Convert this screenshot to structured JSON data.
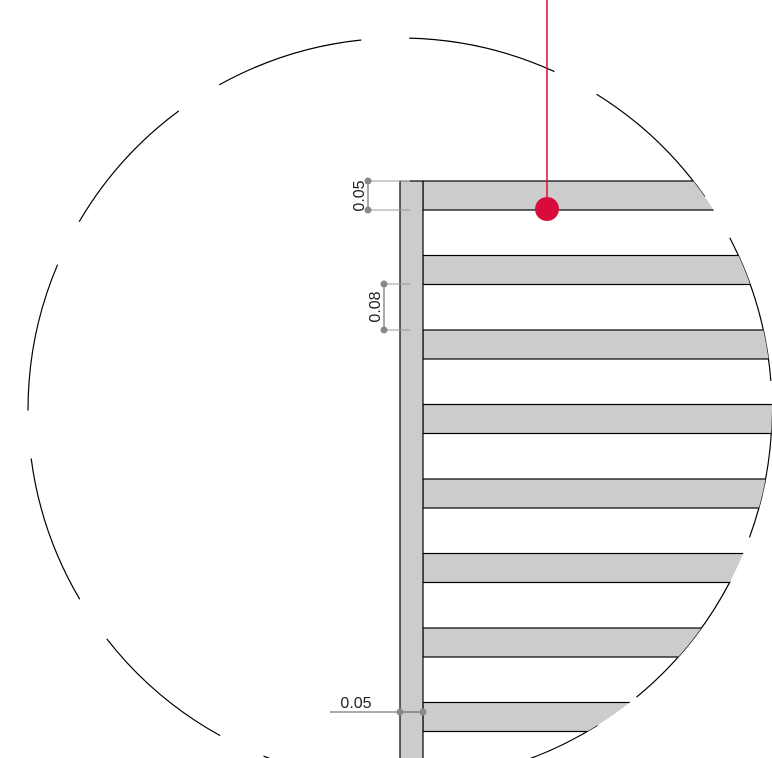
{
  "colors": {
    "background": "#ffffff",
    "fill": "#cccccc",
    "stroke": "#000000",
    "dimension": "#888888",
    "callout": "#d90b3a"
  },
  "dimensions": {
    "top_thickness": "0.05",
    "gap": "0.08",
    "post_width": "0.05"
  },
  "slat_count": 8
}
